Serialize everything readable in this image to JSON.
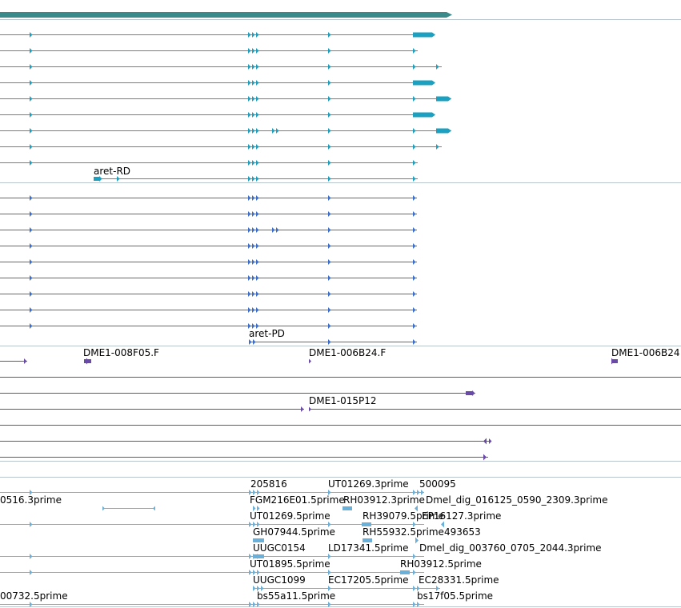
{
  "colors": {
    "gene": "#3a8a8c",
    "transcript": "#1aa0c0",
    "protein": "#3b6fcf",
    "clone": "#6a4aa8",
    "est": "#6ab0d8",
    "separator": "#b8c4cc",
    "background": "#ffffff"
  },
  "tracks": {
    "transcripts": {
      "feature_label": "aret-RD",
      "row_count": 10
    },
    "proteins": {
      "feature_label": "aret-PD",
      "row_count": 10
    },
    "clones": {
      "labels": [
        "DME1-008F05.F",
        "DME1-006B24.F",
        "DME1-006B24",
        "DME1-015P12"
      ]
    },
    "ests": {
      "labels": [
        "205816",
        "UT01269.3prime",
        "500095",
        "0516.3prime",
        "FGM216E01.5prime",
        "RH03912.3prime",
        "Dmel_dig_016125_0590_2309.3prime",
        "UT01269.5prime",
        "RH39079.5prime",
        "EP16127.3prime",
        "GH07944.5prime",
        "RH55932.5prime",
        "493653",
        "UUGC0154",
        "LD17341.5prime",
        "Dmel_dig_003760_0705_2044.3prime",
        "UT01895.5prime",
        "RH03912.5prime",
        "UUGC1099",
        "EC17205.5prime",
        "EC28331.5prime",
        "00732.5prime",
        "bs55a11.5prime",
        "bs17f05.5prime"
      ]
    }
  }
}
